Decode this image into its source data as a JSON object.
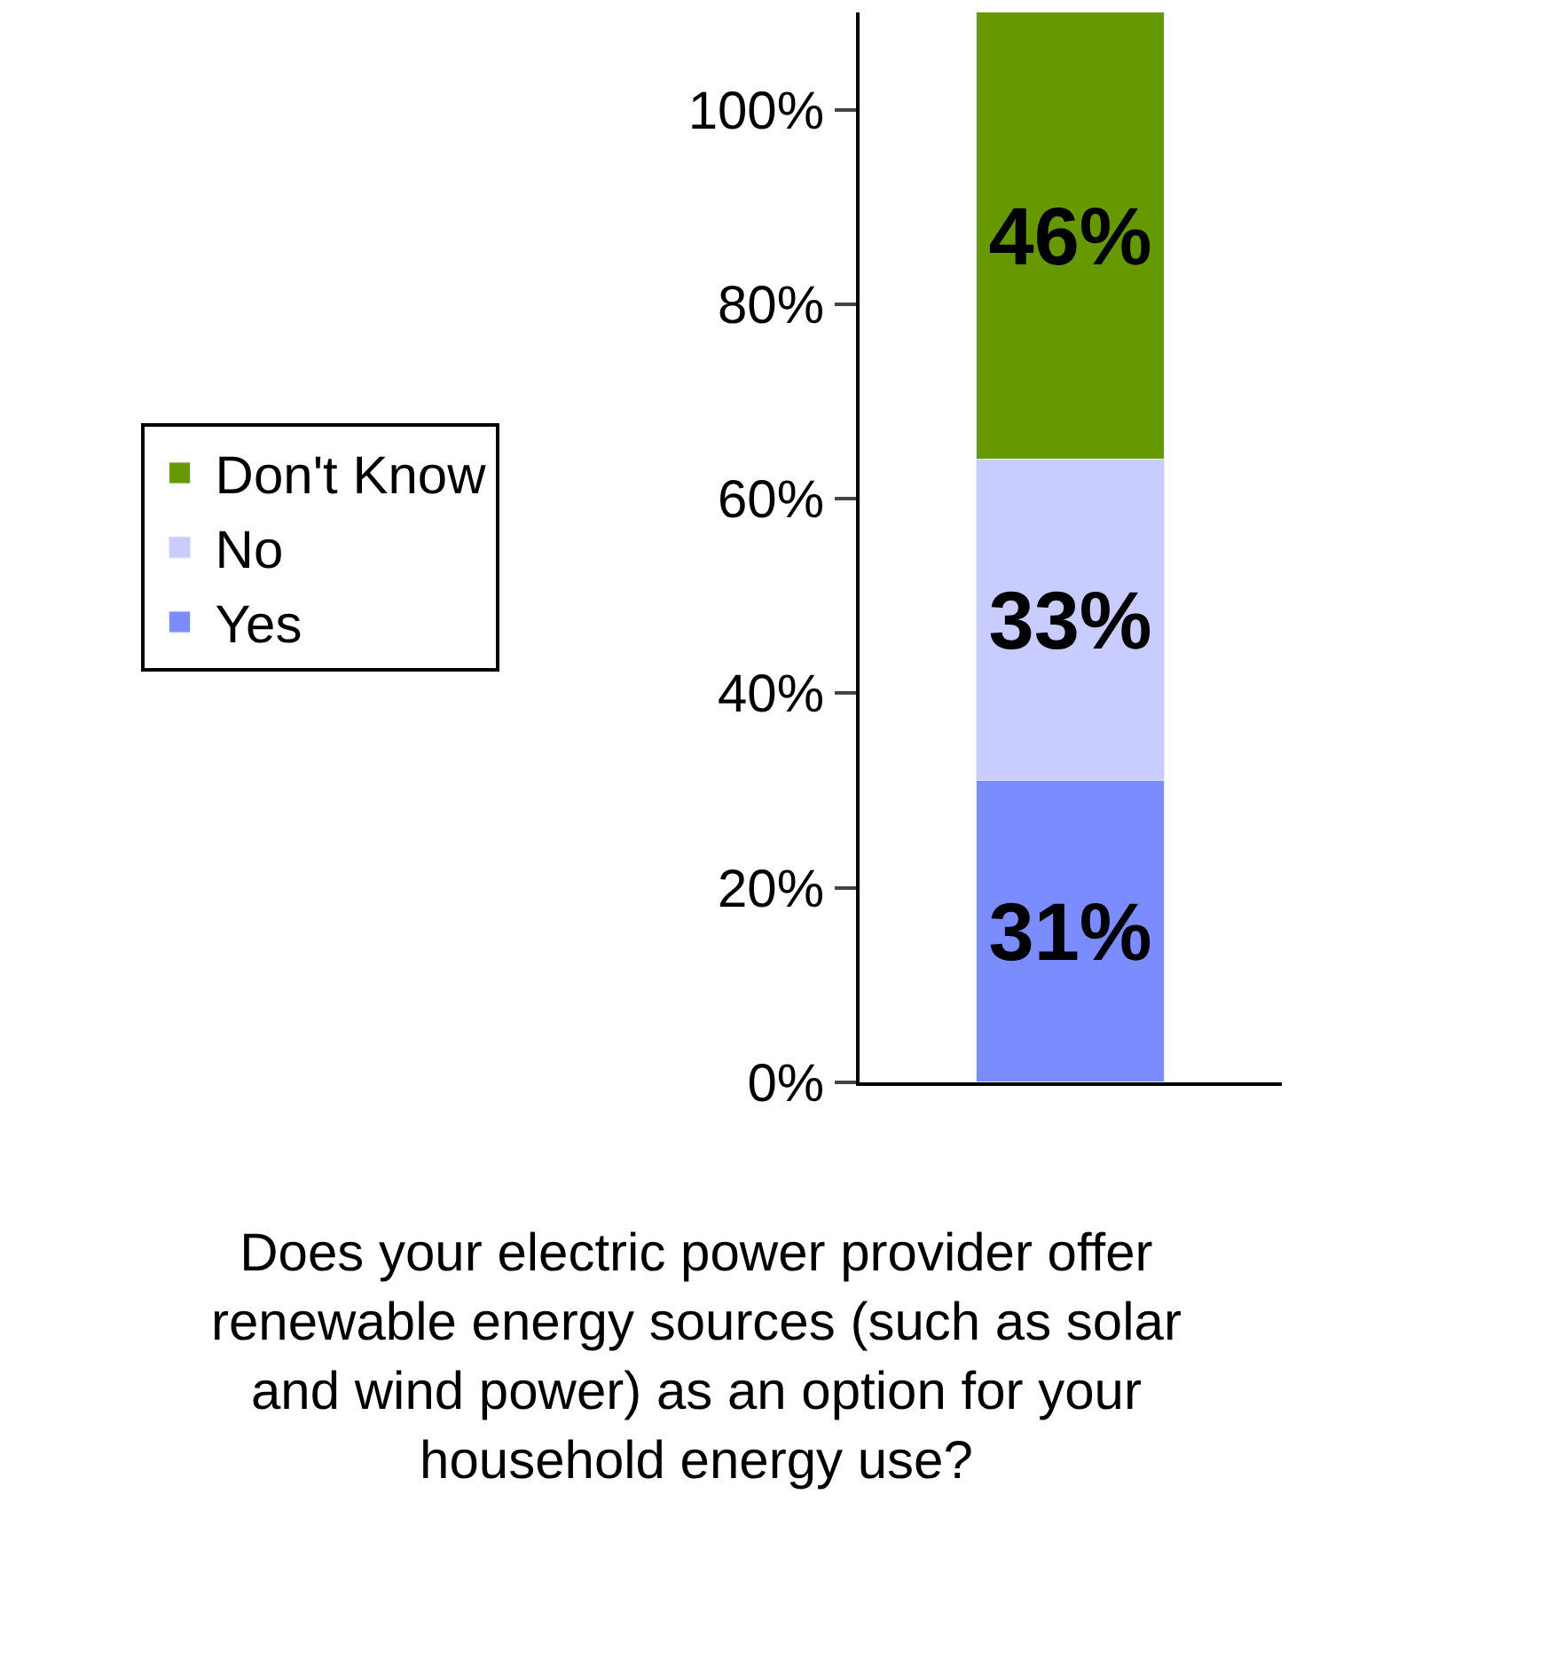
{
  "chart_data": {
    "type": "bar",
    "stacked": true,
    "categories": [
      null
    ],
    "series": [
      {
        "name": "Yes",
        "color": "#7b8cff",
        "values": [
          31
        ],
        "value_labels": [
          "31%"
        ]
      },
      {
        "name": "No",
        "color": "#c8ccff",
        "values": [
          33
        ],
        "value_labels": [
          "33%"
        ]
      },
      {
        "name": "Don't Know",
        "color": "#669900",
        "values": [
          46
        ],
        "value_labels": [
          "46%"
        ]
      }
    ],
    "ylim": [
      0,
      110
    ],
    "yticks": [
      {
        "value": 0,
        "label": "0%"
      },
      {
        "value": 20,
        "label": "20%"
      },
      {
        "value": 40,
        "label": "40%"
      },
      {
        "value": 60,
        "label": "60%"
      },
      {
        "value": 80,
        "label": "80%"
      },
      {
        "value": 100,
        "label": "100%"
      }
    ],
    "legend": "left",
    "annotations": [
      "Does your electric power provider offer renewable energy sources (such as solar and wind power) as an option for your household energy use?"
    ]
  }
}
